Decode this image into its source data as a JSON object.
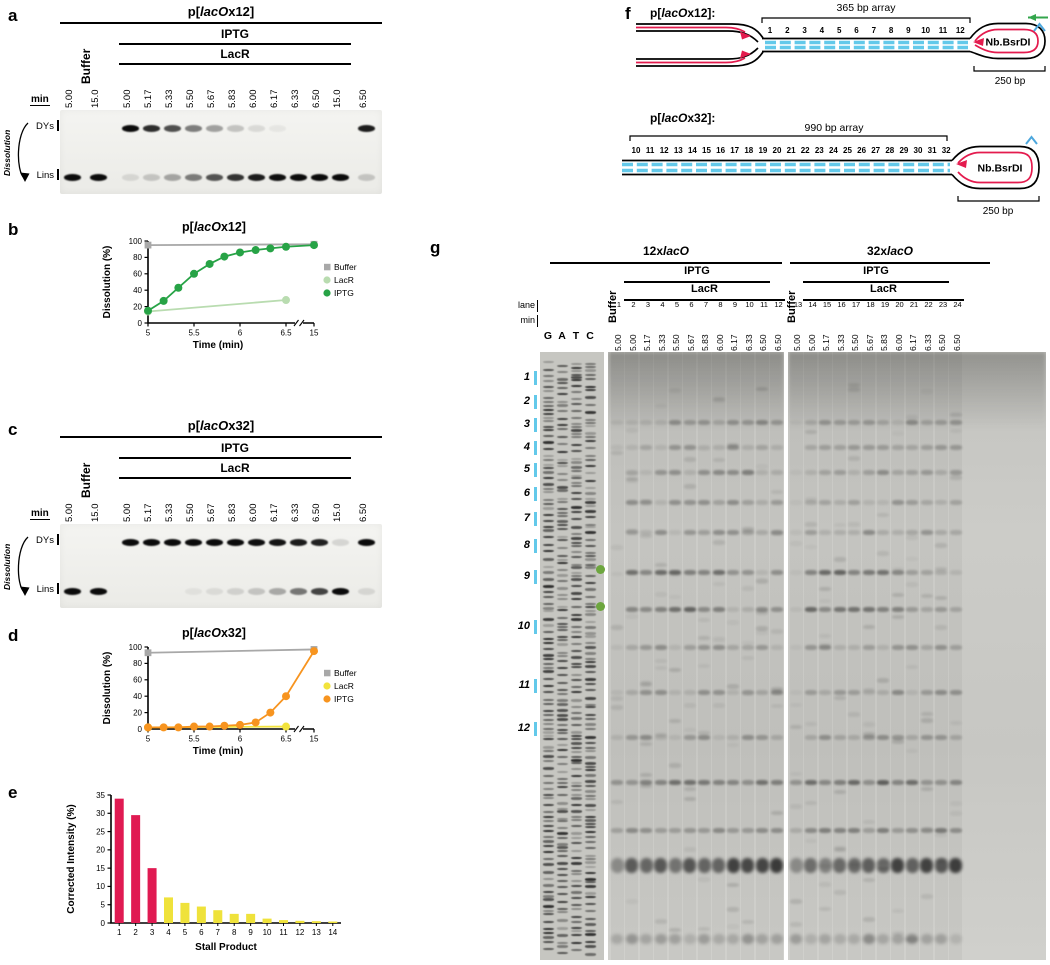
{
  "colors": {
    "buffer_gray": "#a8a8a8",
    "lacr_pale_green": "#b9dcb0",
    "iptg_green": "#27a346",
    "lacr_yellow": "#f2e33c",
    "iptg_orange": "#f7941f",
    "bar_crimson": "#e01a52",
    "bar_yellow": "#efe23b",
    "array_cyan": "#63c9ea",
    "strand_red": "#e41b4e",
    "green_arrow": "#33a64c",
    "nick_blue": "#4da7dd",
    "green_dot": "#6da63e"
  },
  "panel_a": {
    "label": "a",
    "title": {
      "pre": "p[",
      "it": "lacO",
      "post": "x12]"
    },
    "iptg": "IPTG",
    "lacr": "LacR",
    "buffer": "Buffer",
    "min": "min",
    "dys": "DYs",
    "lins": "Lins",
    "dissolution": "Dissolution",
    "times": [
      "5.00",
      "15.0",
      "5.00",
      "5.17",
      "5.33",
      "5.50",
      "5.67",
      "5.83",
      "6.00",
      "6.17",
      "6.33",
      "6.50",
      "15.0",
      "6.50"
    ],
    "bands_dys": [
      0,
      0,
      1,
      0.85,
      0.7,
      0.5,
      0.35,
      0.2,
      0.1,
      0.05,
      0,
      0,
      0,
      0.92
    ],
    "bands_lins": [
      1,
      1,
      0.1,
      0.18,
      0.32,
      0.5,
      0.68,
      0.82,
      0.92,
      0.98,
      1,
      1,
      1,
      0.18
    ]
  },
  "panel_c": {
    "label": "c",
    "title": {
      "pre": "p[",
      "it": "lacO",
      "post": "x32]"
    },
    "iptg": "IPTG",
    "lacr": "LacR",
    "buffer": "Buffer",
    "min": "min",
    "dys": "DYs",
    "lins": "Lins",
    "dissolution": "Dissolution",
    "times": [
      "5.00",
      "15.0",
      "5.00",
      "5.17",
      "5.33",
      "5.50",
      "5.67",
      "5.83",
      "6.00",
      "6.17",
      "6.33",
      "6.50",
      "15.0",
      "6.50"
    ],
    "bands_dys": [
      0,
      0,
      1,
      1,
      1,
      1,
      1,
      1,
      0.98,
      0.96,
      0.93,
      0.9,
      0.12,
      1
    ],
    "bands_lins": [
      1,
      1,
      0,
      0,
      0,
      0.05,
      0.08,
      0.12,
      0.18,
      0.3,
      0.52,
      0.75,
      1,
      0.1
    ]
  },
  "chart_data": [
    {
      "panel_label": "b",
      "id": "b",
      "type": "line",
      "title": {
        "pre": "p[",
        "it": "lacO",
        "post": "x12]"
      },
      "xlabel": "Time (min)",
      "ylabel": "Dissolution (%)",
      "ylim": [
        0,
        100
      ],
      "yticks": [
        0,
        20,
        40,
        60,
        80,
        100
      ],
      "xticks": [
        5,
        5.5,
        6,
        6.5,
        15
      ],
      "axis_break_after_x": 6.5,
      "legend_position": "right",
      "series": [
        {
          "name": "Buffer",
          "color": "#a8a8a8",
          "marker": "square",
          "x": [
            5,
            15
          ],
          "y": [
            95,
            96
          ]
        },
        {
          "name": "LacR",
          "color": "#b9dcb0",
          "marker": "circle",
          "x": [
            5,
            6.5
          ],
          "y": [
            14,
            28
          ]
        },
        {
          "name": "IPTG",
          "color": "#27a346",
          "marker": "circle",
          "x": [
            5,
            5.17,
            5.33,
            5.5,
            5.67,
            5.83,
            6,
            6.17,
            6.33,
            6.5,
            15
          ],
          "y": [
            15,
            27,
            43,
            60,
            72,
            81,
            86,
            89,
            91,
            93,
            95
          ]
        }
      ]
    },
    {
      "panel_label": "d",
      "id": "d",
      "type": "line",
      "title": {
        "pre": "p[",
        "it": "lacO",
        "post": "x32]"
      },
      "xlabel": "Time (min)",
      "ylabel": "Dissolution (%)",
      "ylim": [
        0,
        100
      ],
      "yticks": [
        0,
        20,
        40,
        60,
        80,
        100
      ],
      "xticks": [
        5,
        5.5,
        6,
        6.5,
        15
      ],
      "axis_break_after_x": 6.5,
      "legend_position": "right",
      "series": [
        {
          "name": "Buffer",
          "color": "#a8a8a8",
          "marker": "square",
          "x": [
            5,
            15
          ],
          "y": [
            93,
            97
          ]
        },
        {
          "name": "LacR",
          "color": "#f2e33c",
          "marker": "circle",
          "x": [
            5,
            6.5
          ],
          "y": [
            2,
            3
          ]
        },
        {
          "name": "IPTG",
          "color": "#f7941f",
          "marker": "circle",
          "x": [
            5,
            5.17,
            5.33,
            5.5,
            5.67,
            5.83,
            6,
            6.17,
            6.33,
            6.5,
            15
          ],
          "y": [
            2,
            2,
            2,
            3,
            3,
            4,
            5,
            8,
            20,
            40,
            95
          ]
        }
      ]
    },
    {
      "panel_label": "e",
      "id": "e",
      "type": "bar",
      "xlabel": "Stall Product",
      "ylabel": "Corrected Intensity (%)",
      "ylim": [
        0,
        35
      ],
      "yticks": [
        0,
        5,
        10,
        15,
        20,
        25,
        30,
        35
      ],
      "categories": [
        "1",
        "2",
        "3",
        "4",
        "5",
        "6",
        "7",
        "8",
        "9",
        "10",
        "11",
        "12",
        "13",
        "14"
      ],
      "values": [
        34,
        29.5,
        15,
        7,
        5.5,
        4.5,
        3.5,
        2.5,
        2.5,
        1.2,
        0.8,
        0.6,
        0.5,
        0.4
      ],
      "bar_colors": [
        "#e01a52",
        "#e01a52",
        "#e01a52",
        "#efe23b",
        "#efe23b",
        "#efe23b",
        "#efe23b",
        "#efe23b",
        "#efe23b",
        "#efe23b",
        "#efe23b",
        "#efe23b",
        "#efe23b",
        "#efe23b"
      ]
    }
  ],
  "panel_f": {
    "label": "f",
    "top": {
      "name": {
        "pre": "p[",
        "it": "lacO",
        "post": "x12]:"
      },
      "array_label": "365 bp array",
      "numbers": [
        "1",
        "2",
        "3",
        "4",
        "5",
        "6",
        "7",
        "8",
        "9",
        "10",
        "11",
        "12"
      ],
      "enzyme": "Nb.BsrDI",
      "bp": "250 bp"
    },
    "bottom": {
      "name": {
        "pre": "p[",
        "it": "lacO",
        "post": "x32]:"
      },
      "array_label": "990 bp array",
      "numbers": [
        "10",
        "11",
        "12",
        "13",
        "14",
        "15",
        "16",
        "17",
        "18",
        "19",
        "20",
        "21",
        "22",
        "23",
        "24",
        "25",
        "26",
        "27",
        "28",
        "29",
        "30",
        "31",
        "32"
      ],
      "enzyme": "Nb.BsrDI",
      "bp": "250 bp"
    }
  },
  "panel_g": {
    "label": "g",
    "lane_label": "lane",
    "min_label": "min",
    "gatc": [
      "G",
      "A",
      "T",
      "C"
    ],
    "markers": [
      "1",
      "2",
      "3",
      "4",
      "5",
      "6",
      "7",
      "8",
      "9",
      "10",
      "11",
      "12"
    ],
    "gel12": {
      "title": {
        "pre": "12x",
        "it": "lacO",
        "post": ""
      },
      "iptg": "IPTG",
      "lacr": "LacR",
      "buffer": "Buffer",
      "lanes": [
        "1",
        "2",
        "3",
        "4",
        "5",
        "6",
        "7",
        "8",
        "9",
        "10",
        "11",
        "12"
      ],
      "times": [
        "5.00",
        "5.00",
        "5.17",
        "5.33",
        "5.50",
        "5.67",
        "5.83",
        "6.00",
        "6.17",
        "6.33",
        "6.50",
        "6.50"
      ]
    },
    "gel32": {
      "title": {
        "pre": "32x",
        "it": "lacO",
        "post": ""
      },
      "iptg": "IPTG",
      "lacr": "LacR",
      "buffer": "Buffer",
      "lanes": [
        "13",
        "14",
        "15",
        "16",
        "17",
        "18",
        "19",
        "20",
        "21",
        "22",
        "23",
        "24"
      ],
      "times": [
        "5.00",
        "5.00",
        "5.17",
        "5.33",
        "5.50",
        "5.67",
        "5.83",
        "6.00",
        "6.17",
        "6.33",
        "6.50",
        "6.50"
      ]
    }
  }
}
